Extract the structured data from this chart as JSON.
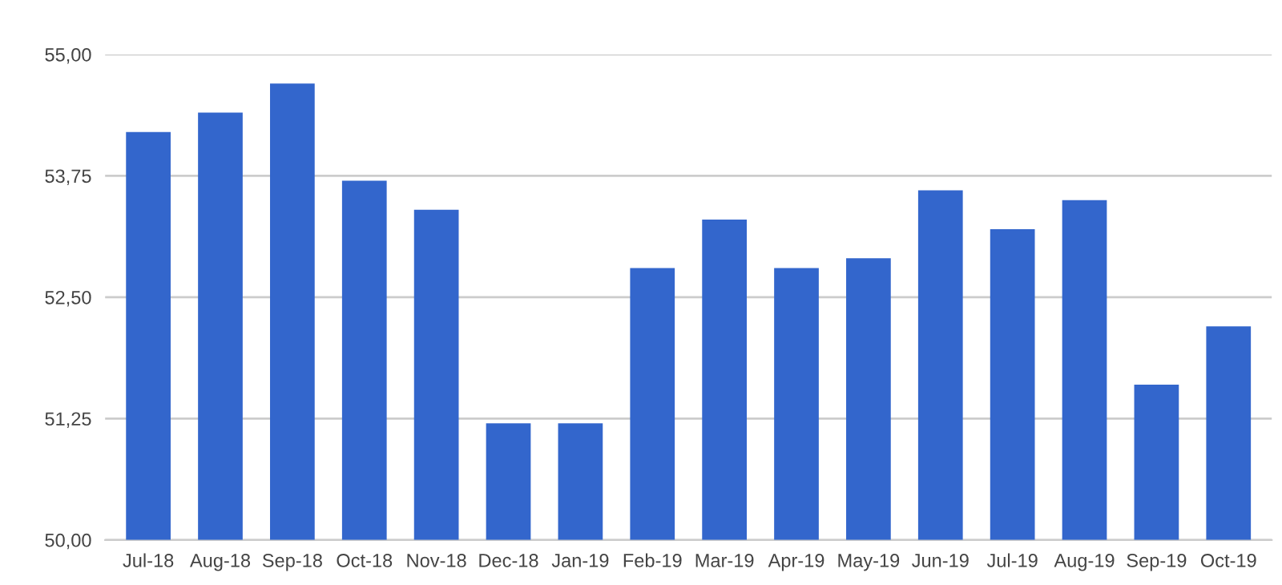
{
  "chart_data": {
    "type": "bar",
    "categories": [
      "Jul-18",
      "Aug-18",
      "Sep-18",
      "Oct-18",
      "Nov-18",
      "Dec-18",
      "Jan-19",
      "Feb-19",
      "Mar-19",
      "Apr-19",
      "May-19",
      "Jun-19",
      "Jul-19",
      "Aug-19",
      "Sep-19",
      "Oct-19"
    ],
    "values": [
      54.2,
      54.4,
      54.7,
      53.7,
      53.4,
      51.2,
      51.2,
      52.8,
      53.3,
      52.8,
      52.9,
      53.6,
      53.2,
      53.5,
      51.6,
      52.2
    ],
    "color": "#3366cc",
    "ylim": [
      50,
      55
    ],
    "yticks": [
      {
        "value": 50,
        "label": "50,00"
      },
      {
        "value": 51.25,
        "label": "51,25"
      },
      {
        "value": 52.5,
        "label": "52,50"
      },
      {
        "value": 53.75,
        "label": "53,75"
      },
      {
        "value": 55,
        "label": "55,00"
      }
    ],
    "grid": "y"
  }
}
